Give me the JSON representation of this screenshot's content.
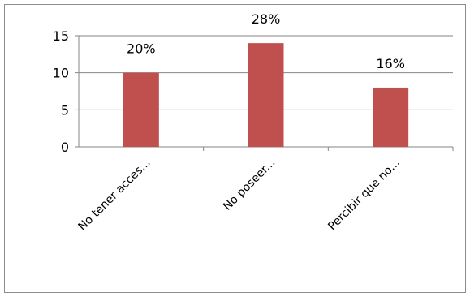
{
  "chart_data": {
    "type": "bar",
    "title": "",
    "xlabel": "",
    "ylabel": "",
    "categories": [
      "No tener acces...",
      "No poseer...",
      "Percibir que no..."
    ],
    "values": [
      10,
      14,
      8
    ],
    "data_labels": [
      "20%",
      "28%",
      "16%"
    ],
    "y_ticks": [
      "0",
      "5",
      "10",
      "15"
    ],
    "ylim": [
      0,
      15
    ],
    "grid": true,
    "bar_color": "#c0504d",
    "grid_color": "#868686"
  }
}
